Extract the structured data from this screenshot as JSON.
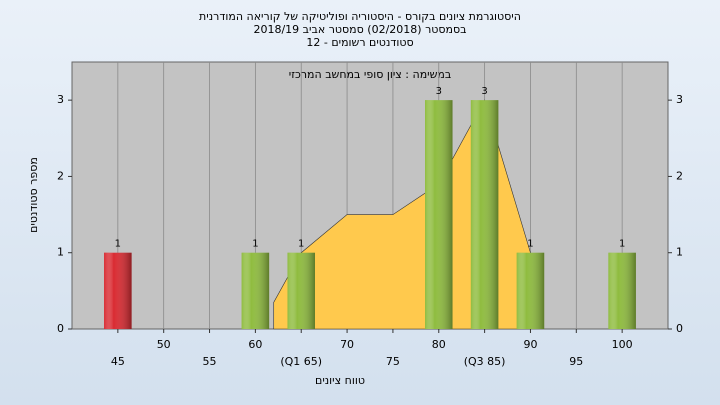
{
  "chart_data": {
    "type": "bar",
    "title": [
      "היסטוגרמת ציונים בקורס - היסטוריה ופוליטיקה של קוריאה המודרנית",
      "בסמסטר (02/2018) סמסטר אביב 2018/19",
      "סטודנטים רשומים - 12"
    ],
    "subtitle": "במשימה : ציון סופי במחשב המרכזי",
    "x_label": "טווח ציונים",
    "y_label": "מספר סטודנטים",
    "x": [
      45,
      60,
      65,
      80,
      85,
      90,
      100
    ],
    "values": [
      1,
      1,
      1,
      3,
      3,
      1,
      1
    ],
    "colors": [
      "#d92b32",
      "#8fbc3f",
      "#8fbc3f",
      "#8fbc3f",
      "#8fbc3f",
      "#8fbc3f",
      "#8fbc3f"
    ],
    "bar_width": 3,
    "area": {
      "x": [
        62,
        65,
        70,
        75,
        80,
        85,
        90
      ],
      "values": [
        0.35,
        1,
        1.5,
        1.5,
        1.9,
        3,
        1
      ],
      "color": "#ffc94d"
    },
    "xlim": [
      40,
      105
    ],
    "ylim": [
      0,
      3.5
    ],
    "xticks": [
      45,
      50,
      55,
      60,
      {
        "value": 65,
        "label": "(Q1 65)"
      },
      70,
      75,
      80,
      {
        "value": 85,
        "label": "(Q3 85)"
      },
      90,
      95,
      100
    ],
    "yticks": [
      0,
      1,
      2,
      3
    ],
    "y2ticks": [
      0,
      1,
      2,
      3
    ],
    "grid": true
  }
}
